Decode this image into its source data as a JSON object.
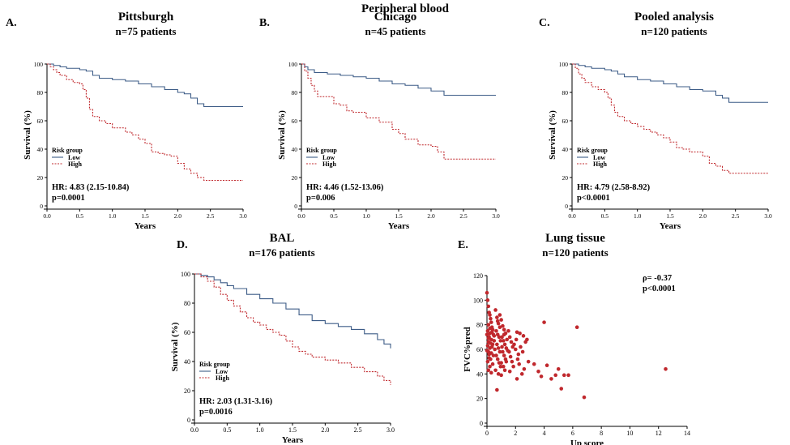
{
  "figure": {
    "section_title": "Peripheral blood",
    "colors": {
      "low": "#3d5c87",
      "high": "#c0282d",
      "scatter": "#c0282d",
      "axis": "#000000"
    }
  },
  "chart_data": [
    {
      "id": "A",
      "type": "line",
      "panel_label": "A.",
      "title": "Pittsburgh",
      "subtitle": "n=75 patients",
      "xlabel": "Years",
      "ylabel": "Survival (%)",
      "xlim": [
        0,
        3
      ],
      "ylim": [
        0,
        100
      ],
      "xticks": [
        "0.0",
        "0.5",
        "1.0",
        "1.5",
        "2.0",
        "2.5",
        "3.0"
      ],
      "yticks": [
        "0",
        "20",
        "40",
        "60",
        "80",
        "100"
      ],
      "legend": {
        "title": "Risk group",
        "entries": [
          "Low",
          "High"
        ],
        "placement": "lower-left"
      },
      "annotations": [
        "HR: 4.83 (2.15-10.84)",
        "p=0.0001"
      ],
      "series": [
        {
          "name": "Low",
          "step": true,
          "dashed": false,
          "x": [
            0,
            0.1,
            0.2,
            0.3,
            0.5,
            0.6,
            0.7,
            0.8,
            1.0,
            1.2,
            1.4,
            1.6,
            1.8,
            2.0,
            2.1,
            2.2,
            2.3,
            2.4,
            3.0
          ],
          "y": [
            100,
            99,
            98,
            97,
            96,
            95,
            92,
            90,
            89,
            88,
            86,
            84,
            82,
            80,
            79,
            76,
            72,
            70,
            70
          ]
        },
        {
          "name": "High",
          "step": true,
          "dashed": true,
          "x": [
            0,
            0.05,
            0.1,
            0.15,
            0.2,
            0.3,
            0.4,
            0.5,
            0.55,
            0.6,
            0.65,
            0.7,
            0.8,
            0.9,
            1.0,
            1.1,
            1.2,
            1.3,
            1.4,
            1.5,
            1.6,
            1.7,
            1.8,
            1.9,
            2.0,
            2.1,
            2.2,
            2.3,
            2.4,
            3.0
          ],
          "y": [
            100,
            98,
            96,
            94,
            92,
            89,
            87,
            86,
            82,
            76,
            68,
            63,
            60,
            58,
            55,
            55,
            52,
            50,
            47,
            44,
            38,
            37,
            36,
            35,
            30,
            26,
            23,
            20,
            18,
            18
          ]
        }
      ]
    },
    {
      "id": "B",
      "type": "line",
      "panel_label": "B.",
      "title": "Chicago",
      "subtitle": "n=45 patients",
      "xlabel": "Years",
      "ylabel": "Survival (%)",
      "xlim": [
        0,
        3
      ],
      "ylim": [
        0,
        100
      ],
      "xticks": [
        "0.0",
        "0.5",
        "1.0",
        "1.5",
        "2.0",
        "2.5",
        "3.0"
      ],
      "yticks": [
        "0",
        "20",
        "40",
        "60",
        "80",
        "100"
      ],
      "legend": {
        "title": "Risk group",
        "entries": [
          "Low",
          "High"
        ],
        "placement": "lower-left"
      },
      "annotations": [
        "HR: 4.46 (1.52-13.06)",
        "p=0.006"
      ],
      "series": [
        {
          "name": "Low",
          "step": true,
          "dashed": false,
          "x": [
            0,
            0.05,
            0.1,
            0.2,
            0.4,
            0.6,
            0.8,
            1.0,
            1.2,
            1.4,
            1.6,
            1.8,
            2.0,
            2.2,
            3.0
          ],
          "y": [
            100,
            98,
            96,
            94,
            93,
            92,
            91,
            90,
            88,
            86,
            85,
            83,
            81,
            78,
            78
          ]
        },
        {
          "name": "High",
          "step": true,
          "dashed": true,
          "x": [
            0,
            0.05,
            0.1,
            0.15,
            0.2,
            0.25,
            0.5,
            0.6,
            0.7,
            0.8,
            1.0,
            1.2,
            1.4,
            1.5,
            1.6,
            1.8,
            2.0,
            2.1,
            2.2,
            3.0
          ],
          "y": [
            100,
            95,
            90,
            85,
            81,
            77,
            72,
            71,
            67,
            66,
            62,
            59,
            54,
            51,
            47,
            43,
            42,
            38,
            33,
            33
          ]
        }
      ]
    },
    {
      "id": "C",
      "type": "line",
      "panel_label": "C.",
      "title": "Pooled analysis",
      "subtitle": "n=120 patients",
      "xlabel": "Years",
      "ylabel": "Survival (%)",
      "xlim": [
        0,
        3
      ],
      "ylim": [
        0,
        100
      ],
      "xticks": [
        "0.0",
        "0.5",
        "1.0",
        "1.5",
        "2.0",
        "2.5",
        "3.0"
      ],
      "yticks": [
        "0",
        "20",
        "40",
        "60",
        "80",
        "100"
      ],
      "legend": {
        "title": "Risk group",
        "entries": [
          "Low",
          "High"
        ],
        "placement": "lower-left"
      },
      "annotations": [
        "HR: 4.79 (2.58-8.92)",
        "p<0.0001"
      ],
      "series": [
        {
          "name": "Low",
          "step": true,
          "dashed": false,
          "x": [
            0,
            0.1,
            0.2,
            0.3,
            0.5,
            0.6,
            0.7,
            0.8,
            1.0,
            1.2,
            1.4,
            1.6,
            1.8,
            2.0,
            2.2,
            2.3,
            2.4,
            3.0
          ],
          "y": [
            100,
            99,
            98,
            97,
            96,
            95,
            93,
            91,
            89,
            88,
            86,
            84,
            82,
            81,
            78,
            76,
            73,
            73
          ]
        },
        {
          "name": "High",
          "step": true,
          "dashed": true,
          "x": [
            0,
            0.05,
            0.1,
            0.15,
            0.2,
            0.3,
            0.4,
            0.5,
            0.55,
            0.6,
            0.65,
            0.7,
            0.8,
            0.9,
            1.0,
            1.1,
            1.2,
            1.3,
            1.4,
            1.5,
            1.6,
            1.7,
            1.8,
            2.0,
            2.1,
            2.2,
            2.3,
            2.4,
            3.0
          ],
          "y": [
            100,
            97,
            93,
            90,
            87,
            84,
            82,
            80,
            76,
            71,
            66,
            63,
            60,
            58,
            56,
            54,
            52,
            50,
            48,
            45,
            41,
            40,
            38,
            35,
            30,
            28,
            25,
            23,
            23
          ]
        }
      ]
    },
    {
      "id": "D",
      "type": "line",
      "panel_label": "D.",
      "title": "BAL",
      "subtitle": "n=176 patients",
      "xlabel": "Years",
      "ylabel": "Survival (%)",
      "xlim": [
        0,
        3
      ],
      "ylim": [
        0,
        100
      ],
      "xticks": [
        "0.0",
        "0.5",
        "1.0",
        "1.5",
        "2.0",
        "2.5",
        "3.0"
      ],
      "yticks": [
        "0",
        "20",
        "40",
        "60",
        "80",
        "100"
      ],
      "legend": {
        "title": "Risk group",
        "entries": [
          "Low",
          "High"
        ],
        "placement": "lower-left"
      },
      "annotations": [
        "HR: 2.03 (1.31-3.16)",
        "p=0.0016"
      ],
      "series": [
        {
          "name": "Low",
          "step": true,
          "dashed": false,
          "x": [
            0,
            0.1,
            0.2,
            0.3,
            0.4,
            0.5,
            0.6,
            0.8,
            1.0,
            1.2,
            1.4,
            1.6,
            1.8,
            2.0,
            2.2,
            2.4,
            2.6,
            2.8,
            2.9,
            3.0
          ],
          "y": [
            100,
            99,
            98,
            96,
            94,
            92,
            90,
            86,
            83,
            80,
            76,
            72,
            68,
            66,
            64,
            62,
            59,
            55,
            52,
            49
          ]
        },
        {
          "name": "High",
          "step": true,
          "dashed": true,
          "x": [
            0,
            0.1,
            0.2,
            0.3,
            0.4,
            0.5,
            0.6,
            0.7,
            0.8,
            0.9,
            1.0,
            1.1,
            1.2,
            1.3,
            1.4,
            1.5,
            1.6,
            1.7,
            1.8,
            2.0,
            2.2,
            2.4,
            2.6,
            2.8,
            2.9,
            3.0
          ],
          "y": [
            100,
            98,
            95,
            91,
            86,
            82,
            78,
            74,
            70,
            67,
            65,
            62,
            60,
            58,
            54,
            50,
            47,
            45,
            43,
            41,
            39,
            36,
            33,
            30,
            27,
            24
          ]
        }
      ]
    },
    {
      "id": "E",
      "type": "scatter",
      "panel_label": "E.",
      "title": "Lung tissue",
      "subtitle": "n=120 patients",
      "xlabel": "Up score",
      "ylabel": "FVC%pred",
      "xlim": [
        0,
        14
      ],
      "ylim": [
        0,
        120
      ],
      "xticks": [
        "0",
        "2",
        "4",
        "6",
        "8",
        "10",
        "12",
        "14"
      ],
      "yticks": [
        "0",
        "20",
        "40",
        "60",
        "80",
        "100",
        "120"
      ],
      "annotations": [
        "ρ= -0.37",
        "p<0.0001"
      ],
      "points": [
        [
          0.0,
          106
        ],
        [
          0.05,
          100
        ],
        [
          0.1,
          95
        ],
        [
          0.15,
          90
        ],
        [
          0.2,
          88
        ],
        [
          0.25,
          85
        ],
        [
          0.3,
          82
        ],
        [
          0.1,
          80
        ],
        [
          0.35,
          78
        ],
        [
          0.4,
          76
        ],
        [
          0.05,
          75
        ],
        [
          0.2,
          73
        ],
        [
          0.45,
          72
        ],
        [
          0.15,
          70
        ],
        [
          0.3,
          68
        ],
        [
          0.5,
          67
        ],
        [
          0.1,
          66
        ],
        [
          0.25,
          65
        ],
        [
          0.4,
          64
        ],
        [
          0.05,
          63
        ],
        [
          0.35,
          62
        ],
        [
          0.2,
          61
        ],
        [
          0.55,
          60
        ],
        [
          0.1,
          58
        ],
        [
          0.3,
          57
        ],
        [
          0.45,
          55
        ],
        [
          0.15,
          53
        ],
        [
          0.25,
          52
        ],
        [
          0.05,
          50
        ],
        [
          0.4,
          48
        ],
        [
          0.2,
          46
        ],
        [
          0.1,
          43
        ],
        [
          0.3,
          41
        ],
        [
          0.0,
          72
        ],
        [
          0.1,
          69
        ],
        [
          0.2,
          77
        ],
        [
          0.35,
          74
        ],
        [
          0.5,
          71
        ],
        [
          0.0,
          59
        ],
        [
          0.15,
          56
        ],
        [
          0.6,
          92
        ],
        [
          0.7,
          86
        ],
        [
          0.8,
          81
        ],
        [
          0.9,
          78
        ],
        [
          0.65,
          75
        ],
        [
          0.75,
          72
        ],
        [
          0.85,
          70
        ],
        [
          0.95,
          67
        ],
        [
          0.7,
          64
        ],
        [
          0.8,
          61
        ],
        [
          0.9,
          58
        ],
        [
          0.65,
          55
        ],
        [
          0.75,
          52
        ],
        [
          0.85,
          49
        ],
        [
          0.95,
          46
        ],
        [
          0.6,
          43
        ],
        [
          0.8,
          40
        ],
        [
          0.7,
          27
        ],
        [
          0.9,
          88
        ],
        [
          0.75,
          83
        ],
        [
          1.0,
          84
        ],
        [
          1.1,
          79
        ],
        [
          1.2,
          76
        ],
        [
          1.3,
          73
        ],
        [
          1.05,
          70
        ],
        [
          1.15,
          67
        ],
        [
          1.25,
          64
        ],
        [
          1.35,
          61
        ],
        [
          1.1,
          58
        ],
        [
          1.2,
          55
        ],
        [
          1.3,
          52
        ],
        [
          1.0,
          49
        ],
        [
          1.15,
          46
        ],
        [
          1.25,
          43
        ],
        [
          1.05,
          62
        ],
        [
          1.4,
          68
        ],
        [
          1.45,
          59
        ],
        [
          1.0,
          39
        ],
        [
          1.2,
          72
        ],
        [
          1.35,
          50
        ],
        [
          1.5,
          75
        ],
        [
          1.6,
          70
        ],
        [
          1.7,
          66
        ],
        [
          1.8,
          62
        ],
        [
          1.55,
          58
        ],
        [
          1.65,
          54
        ],
        [
          1.75,
          50
        ],
        [
          1.85,
          46
        ],
        [
          1.6,
          42
        ],
        [
          1.9,
          64
        ],
        [
          2.0,
          60
        ],
        [
          2.1,
          74
        ],
        [
          2.2,
          56
        ],
        [
          2.3,
          73
        ],
        [
          2.05,
          68
        ],
        [
          2.15,
          52
        ],
        [
          2.25,
          48
        ],
        [
          2.35,
          62
        ],
        [
          2.5,
          58
        ],
        [
          2.6,
          44
        ],
        [
          2.7,
          66
        ],
        [
          2.8,
          68
        ],
        [
          2.45,
          40
        ],
        [
          2.55,
          71
        ],
        [
          2.9,
          50
        ],
        [
          3.3,
          48
        ],
        [
          3.6,
          42
        ],
        [
          3.8,
          38
        ],
        [
          4.0,
          82
        ],
        [
          4.2,
          47
        ],
        [
          4.5,
          36
        ],
        [
          4.8,
          39
        ],
        [
          5.0,
          44
        ],
        [
          5.2,
          28
        ],
        [
          5.4,
          39
        ],
        [
          5.7,
          39
        ],
        [
          6.3,
          78
        ],
        [
          6.8,
          21
        ],
        [
          12.5,
          44
        ],
        [
          2.1,
          36
        ]
      ]
    }
  ]
}
